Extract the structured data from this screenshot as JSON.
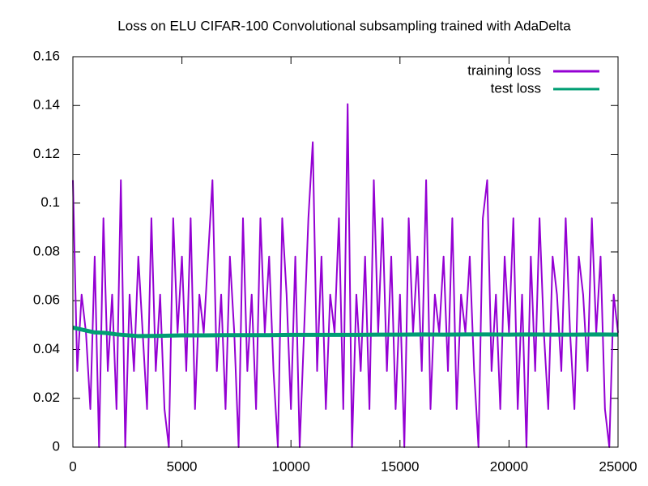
{
  "chart_data": {
    "type": "line",
    "title": "Loss on ELU CIFAR-100 Convolutional subsampling trained with AdaDelta",
    "xlim": [
      0,
      25000
    ],
    "xticks": [
      0,
      5000,
      10000,
      15000,
      20000,
      25000
    ],
    "ylim": [
      0,
      0.16
    ],
    "yticks": [
      0,
      0.02,
      0.04,
      0.06,
      0.08,
      0.1,
      0.12,
      0.14,
      0.16
    ],
    "legend": "top-right",
    "series": [
      {
        "name": "training loss",
        "color": "#9400d3",
        "x": [
          0,
          200,
          400,
          600,
          800,
          1000,
          1200,
          1400,
          1600,
          1800,
          2000,
          2200,
          2400,
          2600,
          2800,
          3000,
          3200,
          3400,
          3600,
          3800,
          4000,
          4200,
          4400,
          4600,
          4800,
          5000,
          5200,
          5400,
          5600,
          5800,
          6000,
          6200,
          6400,
          6600,
          6800,
          7000,
          7200,
          7400,
          7600,
          7800,
          8000,
          8200,
          8400,
          8600,
          8800,
          9000,
          9200,
          9400,
          9600,
          9800,
          10000,
          10200,
          10400,
          10600,
          10800,
          11000,
          11200,
          11400,
          11600,
          11800,
          12000,
          12200,
          12400,
          12600,
          12800,
          13000,
          13200,
          13400,
          13600,
          13800,
          14000,
          14200,
          14400,
          14600,
          14800,
          15000,
          15200,
          15400,
          15600,
          15800,
          16000,
          16200,
          16400,
          16600,
          16800,
          17000,
          17200,
          17400,
          17600,
          17800,
          18000,
          18200,
          18400,
          18600,
          18800,
          19000,
          19200,
          19400,
          19600,
          19800,
          20000,
          20200,
          20400,
          20600,
          20800,
          21000,
          21200,
          21400,
          21600,
          21800,
          22000,
          22200,
          22400,
          22600,
          22800,
          23000,
          23200,
          23400,
          23600,
          23800,
          24000,
          24200,
          24400,
          24600,
          24800,
          25000
        ],
        "values": [
          0.1094,
          0.0312,
          0.0625,
          0.0469,
          0.0156,
          0.0781,
          0,
          0.0938,
          0.0312,
          0.0625,
          0.0156,
          0.1094,
          0,
          0.0625,
          0.0312,
          0.0781,
          0.0469,
          0.0156,
          0.0938,
          0.0312,
          0.0625,
          0.0156,
          0,
          0.0938,
          0.0469,
          0.0781,
          0.0312,
          0.0938,
          0.0156,
          0.0625,
          0.0469,
          0.0781,
          0.1094,
          0.0312,
          0.0625,
          0.0156,
          0.0781,
          0.0469,
          0,
          0.0938,
          0.0312,
          0.0625,
          0.0156,
          0.0938,
          0.0469,
          0.0781,
          0.0312,
          0,
          0.0938,
          0.0625,
          0.0156,
          0.0781,
          0,
          0.0469,
          0.0938,
          0.125,
          0.0312,
          0.0781,
          0.0156,
          0.0625,
          0.0469,
          0.0938,
          0.0156,
          0.1406,
          0,
          0.0625,
          0.0312,
          0.0781,
          0.0156,
          0.1094,
          0.0469,
          0.0938,
          0.0312,
          0.0781,
          0.0156,
          0.0625,
          0,
          0.0938,
          0.0469,
          0.0781,
          0.0312,
          0.1094,
          0.0156,
          0.0625,
          0.0469,
          0.0781,
          0.0312,
          0.0938,
          0.0156,
          0.0625,
          0.0469,
          0.0781,
          0.0312,
          0,
          0.0938,
          0.1094,
          0.0312,
          0.0625,
          0.0156,
          0.0781,
          0.0469,
          0.0938,
          0.0156,
          0.0625,
          0,
          0.0781,
          0.0312,
          0.0938,
          0.0469,
          0.0156,
          0.0781,
          0.0625,
          0.0312,
          0.0938,
          0.0469,
          0.0156,
          0.0781,
          0.0625,
          0.0312,
          0.0938,
          0.0469,
          0.0781,
          0.0156,
          0,
          0.0625,
          0.0469
        ]
      },
      {
        "name": "test loss",
        "color": "#009e73",
        "x": [
          0,
          250,
          500,
          1000,
          1500,
          2000,
          3000,
          4000,
          5000,
          6000,
          7000,
          8000,
          9000,
          10000,
          11000,
          12000,
          13000,
          14000,
          15000,
          16000,
          17000,
          18000,
          19000,
          20000,
          21000,
          22000,
          23000,
          24000,
          25000
        ],
        "values": [
          0.049,
          0.0485,
          0.048,
          0.047,
          0.0468,
          0.0462,
          0.0455,
          0.0456,
          0.0458,
          0.0458,
          0.0459,
          0.0459,
          0.0459,
          0.046,
          0.046,
          0.046,
          0.046,
          0.0461,
          0.0461,
          0.0462,
          0.0461,
          0.0462,
          0.0462,
          0.0461,
          0.0462,
          0.0461,
          0.0461,
          0.0462,
          0.0461
        ]
      }
    ]
  }
}
